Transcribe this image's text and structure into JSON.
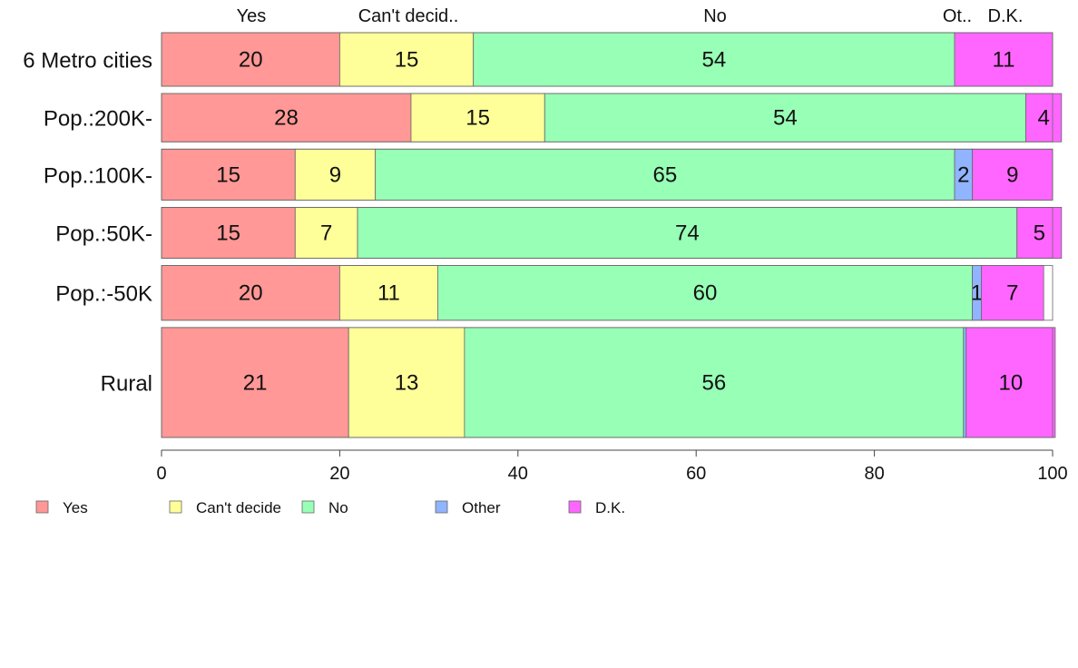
{
  "chart_data": {
    "type": "bar",
    "orientation": "horizontal",
    "stacked": true,
    "categories": [
      "6 Metro cities",
      "Pop.:200K-",
      "Pop.:100K-",
      "Pop.:50K-",
      "Pop.:-50K",
      "Rural"
    ],
    "series": [
      {
        "name": "Yes",
        "color": "#ff9896",
        "values": [
          20,
          28,
          15,
          15,
          20,
          21
        ]
      },
      {
        "name": "Can't decide",
        "color": "#ffff99",
        "values": [
          15,
          15,
          9,
          7,
          11,
          13
        ]
      },
      {
        "name": "No",
        "color": "#98ffb6",
        "values": [
          54,
          54,
          65,
          74,
          60,
          56
        ]
      },
      {
        "name": "Other",
        "color": "#90b4ff",
        "values": [
          0,
          0,
          2,
          0,
          1,
          0.3
        ]
      },
      {
        "name": "D.K.",
        "color": "#ff66ff",
        "values": [
          11,
          4,
          9,
          5,
          7,
          10
        ]
      }
    ],
    "column_headers": [
      "Yes",
      "Can't decid..",
      "No",
      "Ot..",
      "D.K."
    ],
    "xlim": [
      0,
      100
    ],
    "xticks": [
      0,
      20,
      40,
      60,
      80,
      100
    ],
    "grid": false,
    "legend_position": "bottom-left",
    "row_weights": [
      1,
      0.9,
      0.95,
      0.95,
      1.02,
      2.05
    ]
  }
}
